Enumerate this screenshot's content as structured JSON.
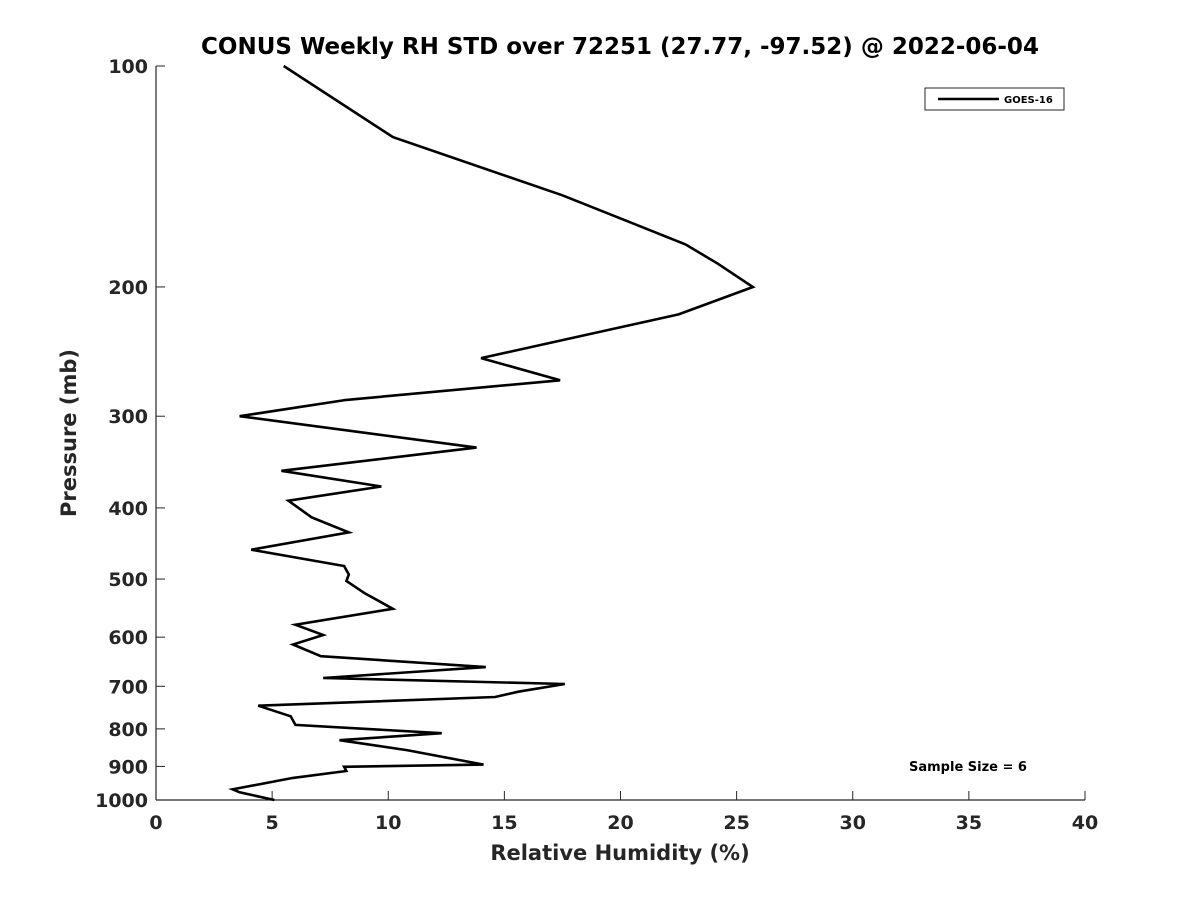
{
  "chart_data": {
    "type": "line",
    "title": "CONUS Weekly RH STD over 72251 (27.77, -97.52) @ 2022-06-04",
    "xlabel": "Relative Humidity (%)",
    "ylabel": "Pressure (mb)",
    "xlim": [
      0,
      40
    ],
    "ylim": [
      100,
      1000
    ],
    "y_scale": "log",
    "y_reversed": true,
    "x_ticks": [
      0,
      5,
      10,
      15,
      20,
      25,
      30,
      35,
      40
    ],
    "y_ticks": [
      100,
      200,
      300,
      400,
      500,
      600,
      700,
      800,
      900,
      1000
    ],
    "grid": false,
    "legend_position": "top-right",
    "annotation": "Sample Size = 6",
    "series": [
      {
        "name": "GOES-16",
        "color": "#000000",
        "points": [
          [
            5.5,
            100
          ],
          [
            10.2,
            125
          ],
          [
            17.5,
            150
          ],
          [
            22.8,
            175
          ],
          [
            24.2,
            186
          ],
          [
            25.7,
            200
          ],
          [
            22.5,
            218
          ],
          [
            14.0,
            250
          ],
          [
            17.4,
            268
          ],
          [
            8.2,
            285
          ],
          [
            3.6,
            300
          ],
          [
            13.8,
            331
          ],
          [
            5.4,
            356
          ],
          [
            9.7,
            374
          ],
          [
            5.7,
            391
          ],
          [
            6.7,
            412
          ],
          [
            8.3,
            432
          ],
          [
            4.1,
            456
          ],
          [
            8.1,
            480
          ],
          [
            8.3,
            493
          ],
          [
            8.2,
            503
          ],
          [
            9.0,
            523
          ],
          [
            10.2,
            549
          ],
          [
            6.0,
            577
          ],
          [
            7.2,
            596
          ],
          [
            5.9,
            614
          ],
          [
            7.1,
            637
          ],
          [
            14.2,
            659
          ],
          [
            7.2,
            682
          ],
          [
            17.6,
            695
          ],
          [
            15.6,
            712
          ],
          [
            14.6,
            724
          ],
          [
            4.4,
            744
          ],
          [
            5.8,
            769
          ],
          [
            6.0,
            790
          ],
          [
            12.3,
            811
          ],
          [
            7.9,
            829
          ],
          [
            10.8,
            855
          ],
          [
            14.1,
            895
          ],
          [
            8.1,
            901
          ],
          [
            8.2,
            913
          ],
          [
            5.9,
            933
          ],
          [
            3.3,
            967
          ],
          [
            3.6,
            976
          ],
          [
            5.1,
            1000
          ]
        ]
      }
    ]
  }
}
